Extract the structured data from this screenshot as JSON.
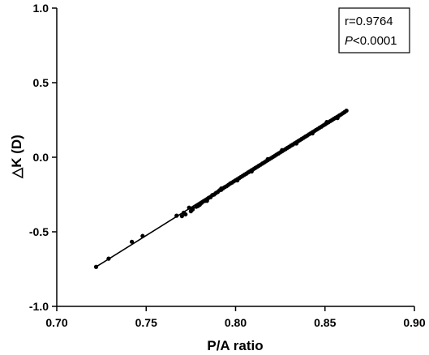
{
  "chart_data": {
    "type": "scatter",
    "xlabel": "P/A ratio",
    "ylabel": "△K (D)",
    "xlim": [
      0.7,
      0.9
    ],
    "ylim": [
      -1.0,
      1.0
    ],
    "xticks": [
      0.7,
      0.75,
      0.8,
      0.85,
      0.9
    ],
    "xtick_labels": [
      "0.70",
      "0.75",
      "0.80",
      "0.85",
      "0.90"
    ],
    "yticks": [
      -1.0,
      -0.5,
      0.0,
      0.5,
      1.0
    ],
    "ytick_labels": [
      "-1.0",
      "-0.5",
      "0.0",
      "0.5",
      "1.0"
    ],
    "grid": false,
    "annotation": {
      "r_text": "r=0.9764",
      "p_italic": "P",
      "p_rest": "<0.0001",
      "position": "top-right"
    },
    "fit_line": {
      "x": [
        0.722,
        0.862
      ],
      "y": [
        -0.735,
        0.315
      ]
    },
    "series": [
      {
        "points": [
          {
            "x": 0.722,
            "y": -0.735
          },
          {
            "x": 0.729,
            "y": -0.68
          },
          {
            "x": 0.742,
            "y": -0.567
          },
          {
            "x": 0.748,
            "y": -0.528
          },
          {
            "x": 0.767,
            "y": -0.392
          },
          {
            "x": 0.77,
            "y": -0.395
          },
          {
            "x": 0.772,
            "y": -0.383
          },
          {
            "x": 0.774,
            "y": -0.338
          },
          {
            "x": 0.775,
            "y": -0.362
          },
          {
            "x": 0.776,
            "y": -0.35
          },
          {
            "x": 0.778,
            "y": -0.332
          },
          {
            "x": 0.779,
            "y": -0.327
          },
          {
            "x": 0.78,
            "y": -0.318
          },
          {
            "x": 0.781,
            "y": -0.306
          },
          {
            "x": 0.782,
            "y": -0.296
          },
          {
            "x": 0.783,
            "y": -0.292
          },
          {
            "x": 0.784,
            "y": -0.283
          },
          {
            "x": 0.785,
            "y": -0.272
          },
          {
            "x": 0.786,
            "y": -0.268
          },
          {
            "x": 0.787,
            "y": -0.254
          },
          {
            "x": 0.788,
            "y": -0.25
          },
          {
            "x": 0.789,
            "y": -0.24
          },
          {
            "x": 0.79,
            "y": -0.233
          },
          {
            "x": 0.791,
            "y": -0.222
          },
          {
            "x": 0.792,
            "y": -0.218
          },
          {
            "x": 0.793,
            "y": -0.208
          },
          {
            "x": 0.794,
            "y": -0.2
          },
          {
            "x": 0.795,
            "y": -0.194
          },
          {
            "x": 0.796,
            "y": -0.185
          },
          {
            "x": 0.797,
            "y": -0.176
          },
          {
            "x": 0.798,
            "y": -0.17
          },
          {
            "x": 0.799,
            "y": -0.162
          },
          {
            "x": 0.8,
            "y": -0.155
          },
          {
            "x": 0.801,
            "y": -0.147
          },
          {
            "x": 0.802,
            "y": -0.14
          },
          {
            "x": 0.803,
            "y": -0.132
          },
          {
            "x": 0.804,
            "y": -0.125
          },
          {
            "x": 0.805,
            "y": -0.117
          },
          {
            "x": 0.806,
            "y": -0.11
          },
          {
            "x": 0.807,
            "y": -0.102
          },
          {
            "x": 0.808,
            "y": -0.095
          },
          {
            "x": 0.809,
            "y": -0.087
          },
          {
            "x": 0.81,
            "y": -0.08
          },
          {
            "x": 0.811,
            "y": -0.072
          },
          {
            "x": 0.812,
            "y": -0.065
          },
          {
            "x": 0.813,
            "y": -0.057
          },
          {
            "x": 0.814,
            "y": -0.05
          },
          {
            "x": 0.815,
            "y": -0.042
          },
          {
            "x": 0.816,
            "y": -0.035
          },
          {
            "x": 0.817,
            "y": -0.027
          },
          {
            "x": 0.818,
            "y": -0.02
          },
          {
            "x": 0.819,
            "y": -0.012
          },
          {
            "x": 0.82,
            "y": -0.005
          },
          {
            "x": 0.821,
            "y": 0.003
          },
          {
            "x": 0.822,
            "y": 0.01
          },
          {
            "x": 0.823,
            "y": 0.018
          },
          {
            "x": 0.824,
            "y": 0.025
          },
          {
            "x": 0.825,
            "y": 0.033
          },
          {
            "x": 0.826,
            "y": 0.04
          },
          {
            "x": 0.827,
            "y": 0.048
          },
          {
            "x": 0.828,
            "y": 0.055
          },
          {
            "x": 0.829,
            "y": 0.063
          },
          {
            "x": 0.83,
            "y": 0.07
          },
          {
            "x": 0.831,
            "y": 0.078
          },
          {
            "x": 0.832,
            "y": 0.085
          },
          {
            "x": 0.833,
            "y": 0.093
          },
          {
            "x": 0.834,
            "y": 0.1
          },
          {
            "x": 0.835,
            "y": 0.108
          },
          {
            "x": 0.836,
            "y": 0.115
          },
          {
            "x": 0.837,
            "y": 0.123
          },
          {
            "x": 0.838,
            "y": 0.13
          },
          {
            "x": 0.839,
            "y": 0.138
          },
          {
            "x": 0.84,
            "y": 0.145
          },
          {
            "x": 0.841,
            "y": 0.153
          },
          {
            "x": 0.842,
            "y": 0.16
          },
          {
            "x": 0.843,
            "y": 0.168
          },
          {
            "x": 0.844,
            "y": 0.175
          },
          {
            "x": 0.845,
            "y": 0.183
          },
          {
            "x": 0.846,
            "y": 0.19
          },
          {
            "x": 0.847,
            "y": 0.198
          },
          {
            "x": 0.848,
            "y": 0.205
          },
          {
            "x": 0.849,
            "y": 0.213
          },
          {
            "x": 0.85,
            "y": 0.22
          },
          {
            "x": 0.851,
            "y": 0.228
          },
          {
            "x": 0.852,
            "y": 0.235
          },
          {
            "x": 0.853,
            "y": 0.243
          },
          {
            "x": 0.854,
            "y": 0.25
          },
          {
            "x": 0.855,
            "y": 0.258
          },
          {
            "x": 0.856,
            "y": 0.265
          },
          {
            "x": 0.857,
            "y": 0.272
          },
          {
            "x": 0.858,
            "y": 0.28
          },
          {
            "x": 0.859,
            "y": 0.287
          },
          {
            "x": 0.86,
            "y": 0.295
          },
          {
            "x": 0.861,
            "y": 0.303
          },
          {
            "x": 0.862,
            "y": 0.312
          },
          {
            "x": 0.784,
            "y": -0.292
          },
          {
            "x": 0.792,
            "y": -0.21
          },
          {
            "x": 0.801,
            "y": -0.155
          },
          {
            "x": 0.809,
            "y": -0.095
          },
          {
            "x": 0.818,
            "y": -0.013
          },
          {
            "x": 0.826,
            "y": 0.048
          },
          {
            "x": 0.834,
            "y": 0.092
          },
          {
            "x": 0.843,
            "y": 0.16
          },
          {
            "x": 0.851,
            "y": 0.236
          },
          {
            "x": 0.857,
            "y": 0.263
          },
          {
            "x": 0.771,
            "y": -0.372
          },
          {
            "x": 0.776,
            "y": -0.342
          }
        ]
      }
    ]
  }
}
